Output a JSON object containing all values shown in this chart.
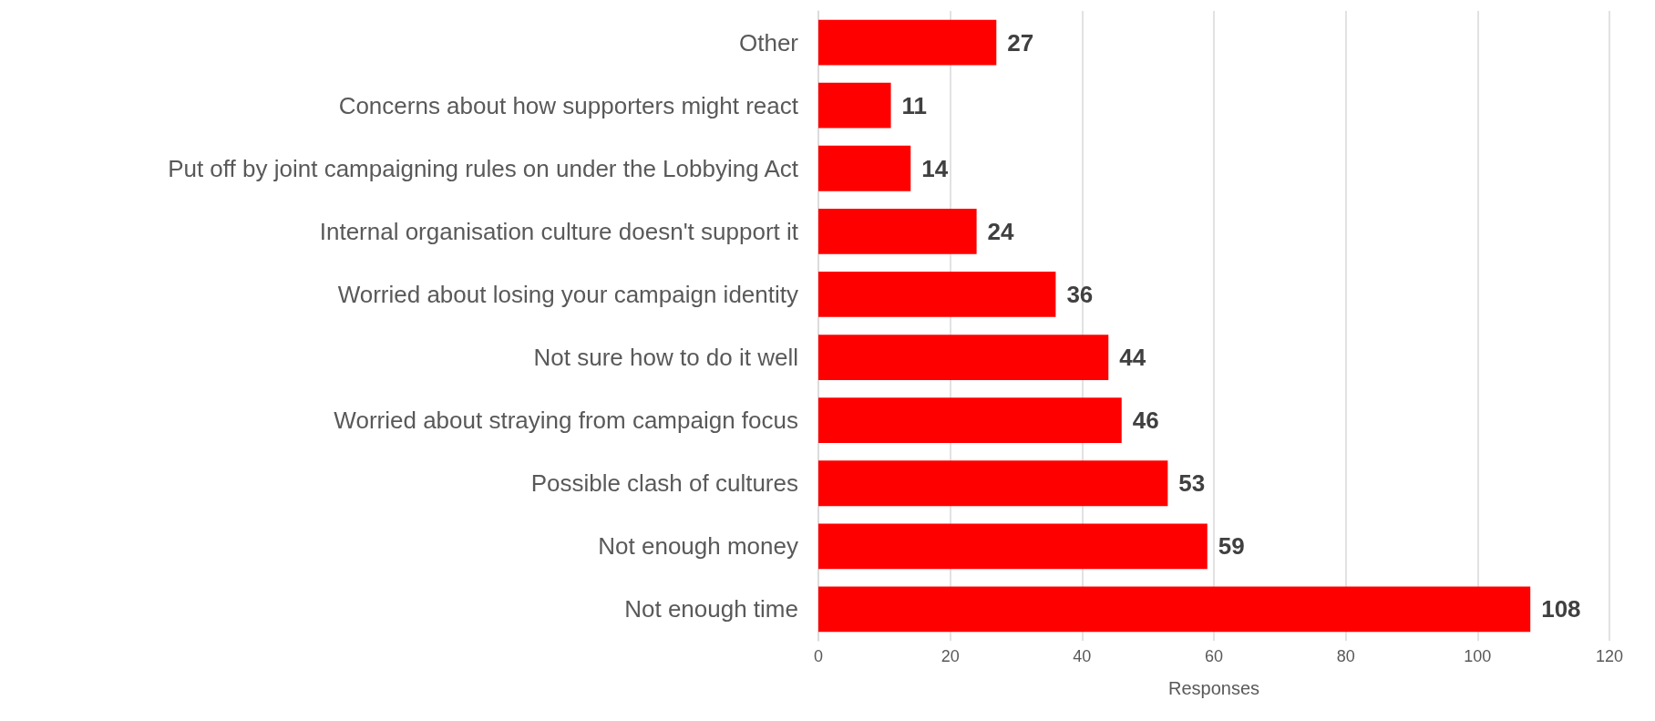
{
  "chart_data": {
    "type": "bar",
    "orientation": "horizontal",
    "xlabel": "Responses",
    "categories": [
      "Other",
      "Concerns about how supporters might react",
      "Put off by joint campaigning rules on under the Lobbying Act",
      "Internal organisation culture doesn't support it",
      "Worried about losing your campaign identity",
      "Not sure how to do it well",
      "Worried about straying from campaign focus",
      "Possible clash of cultures",
      "Not enough money",
      "Not enough time"
    ],
    "values": [
      27,
      11,
      14,
      24,
      36,
      44,
      46,
      53,
      59,
      108
    ],
    "color": "#ff0000",
    "xlim": [
      0,
      120
    ],
    "xticks": [
      0,
      20,
      40,
      60,
      80,
      100,
      120
    ],
    "grid": "x",
    "data_labels": true
  }
}
